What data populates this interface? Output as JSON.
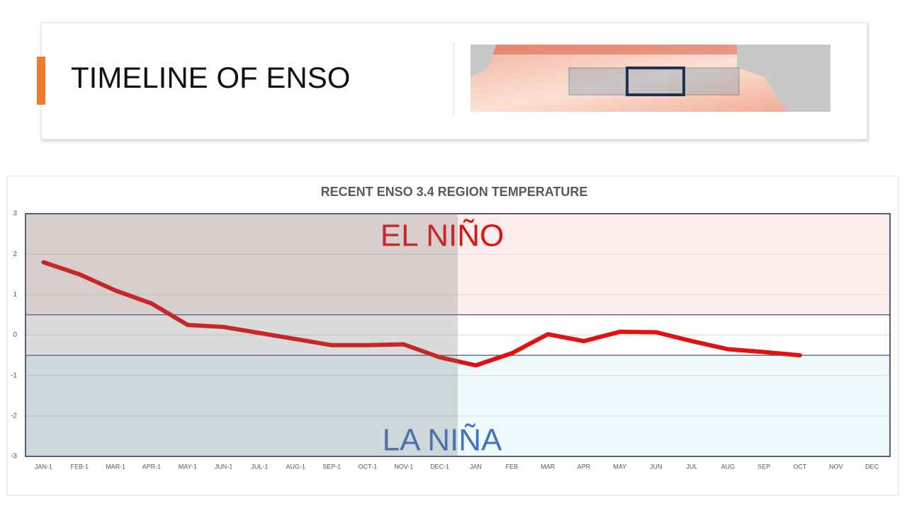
{
  "header": {
    "title": "TIMELINE OF ENSO"
  },
  "chart_data": {
    "type": "line",
    "title": "RECENT ENSO 3.4 REGION TEMPERATURE",
    "categories": [
      "JAN-1",
      "FEB-1",
      "MAR-1",
      "APR-1",
      "MAY-1",
      "JUN-1",
      "JUL-1",
      "AUG-1",
      "SEP-1",
      "OCT-1",
      "NOV-1",
      "DEC-1",
      "JAN",
      "FEB",
      "MAR",
      "APR",
      "MAY",
      "JUN",
      "JUL",
      "AUG",
      "SEP",
      "OCT",
      "NOV",
      "DEC"
    ],
    "values": [
      1.8,
      1.5,
      1.1,
      0.78,
      0.25,
      0.2,
      0.05,
      -0.1,
      -0.25,
      -0.25,
      -0.23,
      -0.55,
      -0.75,
      -0.45,
      0.02,
      -0.15,
      0.08,
      0.07,
      -0.15,
      -0.35,
      -0.42,
      -0.5,
      null,
      null
    ],
    "color": "#e31010",
    "ylim": [
      -3,
      3
    ],
    "yticks": [
      -3,
      -2,
      -1,
      0,
      1,
      2,
      3
    ],
    "grid": true,
    "thresholds": [
      0.5,
      -0.5
    ],
    "annotations": {
      "el_nino": "EL NIÑO",
      "la_nina": "LA NIÑA"
    }
  }
}
